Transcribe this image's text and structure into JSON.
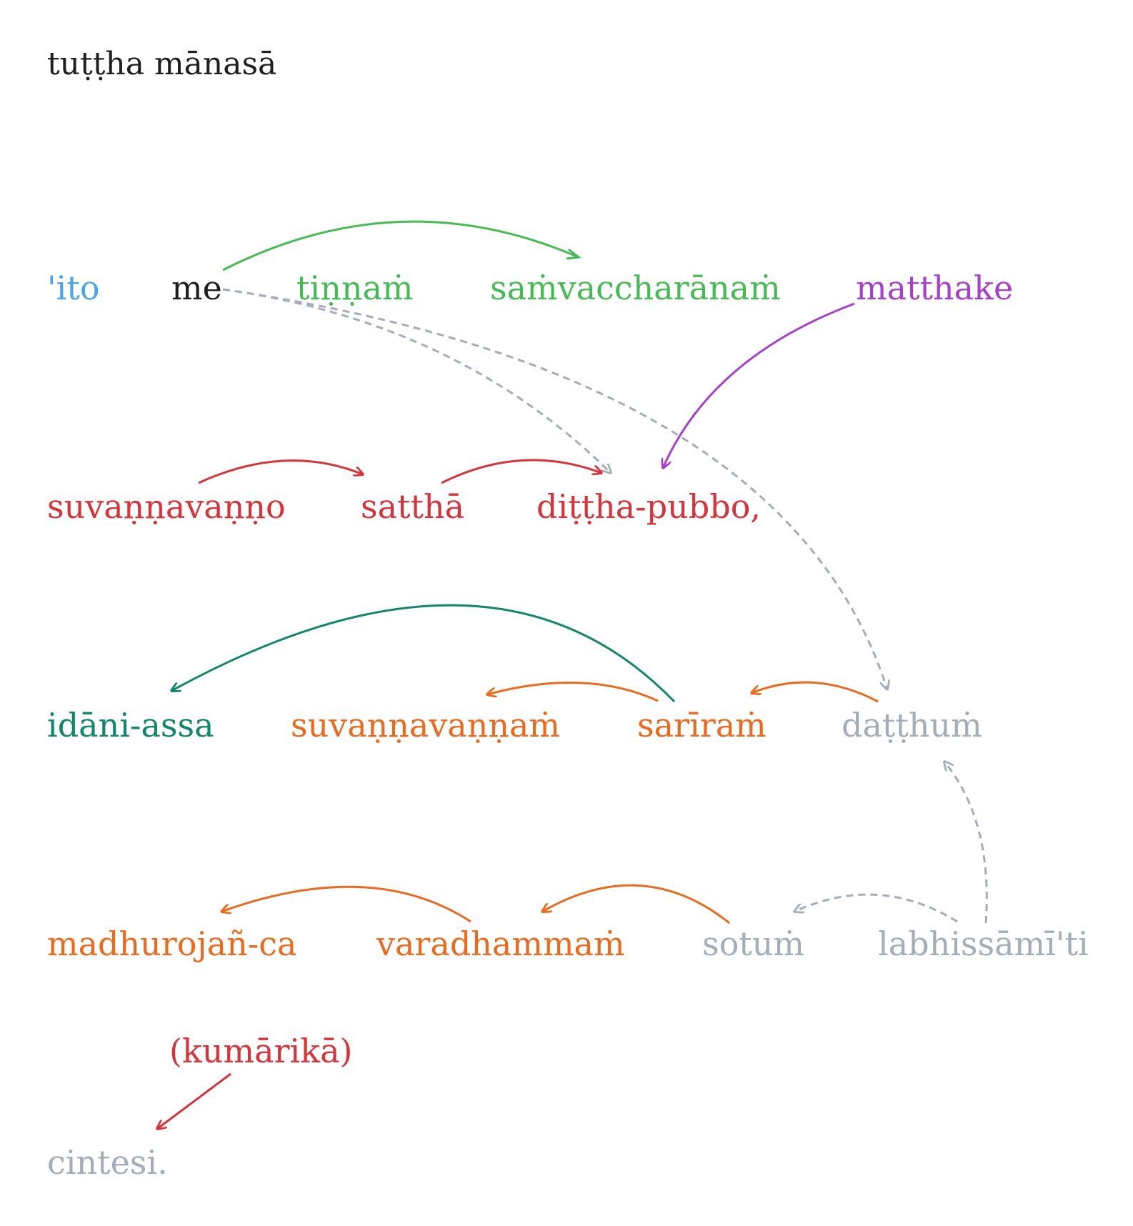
{
  "title": "tuṭṭha mānasā",
  "words": {
    "ito": "'ito",
    "me": "me",
    "tinnam": "tiṇṇaṁ",
    "samvaccharanam": "saṁvaccharānaṁ",
    "matthake": "matthake",
    "suvannavanno": "suvaṇṇavaṇṇo",
    "sattha": "satthā",
    "dittha_pubbo": "diṭṭha-pubbo,",
    "idani_assa": "idāni-assa",
    "suvannavannam": "suvaṇṇavaṇṇaṁ",
    "sariram": "sarīraṁ",
    "datthum": "daṭṭhuṁ",
    "madhurojan_ca": "madhurojañ-ca",
    "varadhammam": "varadhammaṁ",
    "sotum": "sotuṁ",
    "labhissamiti": "labhissāmī'ti",
    "kumarika": "(kumārikā)",
    "cintesi": "cintesi."
  },
  "colors": {
    "blue": "#4aa6ea",
    "black": "#1f1f1f",
    "light_green": "#45bb54",
    "purple": "#a63fc9",
    "red": "#d8333a",
    "teal": "#11876b",
    "orange": "#ec6a1e",
    "gray": "#a4adb8"
  },
  "links": [
    {
      "from": "me",
      "to": "samvaccharanam",
      "color": "light_green",
      "style": "solid"
    },
    {
      "from": "me",
      "to": "dittha_pubbo",
      "color": "gray",
      "style": "dashed"
    },
    {
      "from": "me",
      "to": "datthum",
      "color": "gray",
      "style": "dashed"
    },
    {
      "from": "matthake",
      "to": "dittha_pubbo",
      "color": "purple",
      "style": "solid"
    },
    {
      "from": "suvannavanno",
      "to": "sattha",
      "color": "red",
      "style": "solid"
    },
    {
      "from": "sattha",
      "to": "dittha_pubbo",
      "color": "red",
      "style": "solid"
    },
    {
      "from": "sariram",
      "to": "idani_assa",
      "color": "teal",
      "style": "solid"
    },
    {
      "from": "sariram",
      "to": "suvannavannam",
      "color": "orange",
      "style": "solid"
    },
    {
      "from": "datthum",
      "to": "sariram",
      "color": "orange",
      "style": "solid"
    },
    {
      "from": "labhissamiti",
      "to": "datthum",
      "color": "gray",
      "style": "dashed"
    },
    {
      "from": "labhissamiti",
      "to": "sotum",
      "color": "gray",
      "style": "dashed"
    },
    {
      "from": "varadhammam",
      "to": "madhurojan_ca",
      "color": "orange",
      "style": "solid"
    },
    {
      "from": "sotum",
      "to": "varadhammam",
      "color": "orange",
      "style": "solid"
    },
    {
      "from": "kumarika",
      "to": "cintesi",
      "color": "red",
      "style": "solid"
    }
  ]
}
